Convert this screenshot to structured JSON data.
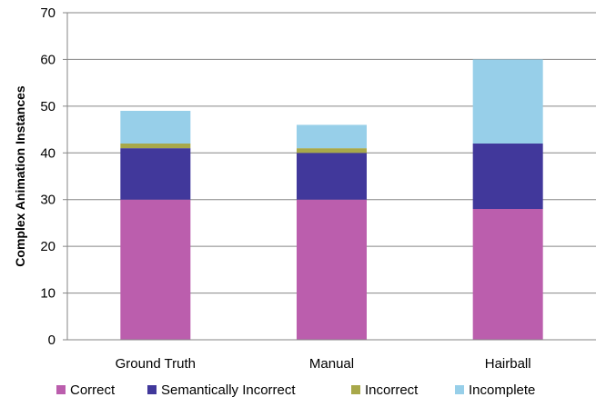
{
  "chart_data": {
    "type": "bar",
    "stacked": true,
    "categories": [
      "Ground Truth",
      "Manual",
      "Hairball"
    ],
    "series": [
      {
        "name": "Correct",
        "color": "#bb5ead",
        "values": [
          30,
          30,
          28
        ]
      },
      {
        "name": "Semantically Incorrect",
        "color": "#41389b",
        "values": [
          11,
          10,
          14
        ]
      },
      {
        "name": "Incorrect",
        "color": "#a8a84a",
        "values": [
          1,
          1,
          0
        ]
      },
      {
        "name": "Incomplete",
        "color": "#97cfe9",
        "values": [
          7,
          5,
          18
        ]
      }
    ],
    "title": "",
    "xlabel": "",
    "ylabel": "Complex Animation Instances",
    "ylim": [
      0,
      70
    ],
    "yticks": [
      0,
      10,
      20,
      30,
      40,
      50,
      60,
      70
    ],
    "grid": true,
    "legend_position": "bottom"
  }
}
